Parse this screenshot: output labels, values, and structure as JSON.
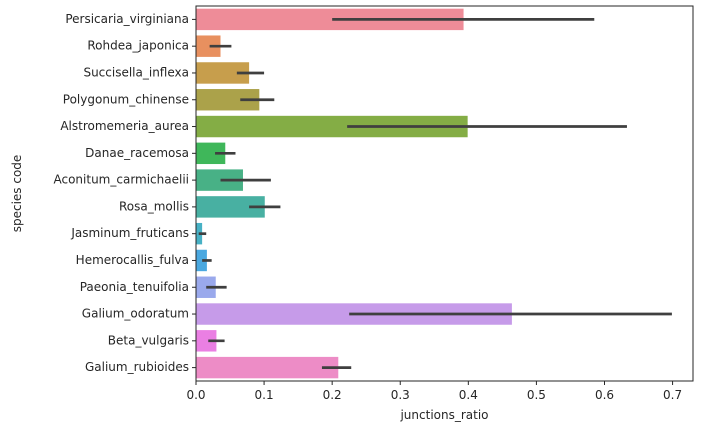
{
  "chart_data": {
    "type": "bar",
    "orientation": "horizontal",
    "title": "",
    "xlabel": "junctions_ratio",
    "ylabel": "species code",
    "xlim": [
      0,
      0.73
    ],
    "xticks": [
      0.0,
      0.1,
      0.2,
      0.3,
      0.4,
      0.5,
      0.6,
      0.7
    ],
    "xtick_labels": [
      "0.0",
      "0.1",
      "0.2",
      "0.3",
      "0.4",
      "0.5",
      "0.6",
      "0.7"
    ],
    "grid": false,
    "legend": "none",
    "error_bars": true,
    "bars": [
      {
        "category": "Persicaria_virginiana",
        "value": 0.393,
        "ci": [
          0.2,
          0.585
        ],
        "color": "#ee8c98"
      },
      {
        "category": "Rohdea_japonica",
        "value": 0.036,
        "ci": [
          0.02,
          0.052
        ],
        "color": "#e8905f"
      },
      {
        "category": "Succisella_inflexa",
        "value": 0.078,
        "ci": [
          0.06,
          0.1
        ],
        "color": "#c79e4c"
      },
      {
        "category": "Polygonum_chinense",
        "value": 0.093,
        "ci": [
          0.065,
          0.115
        ],
        "color": "#aba24a"
      },
      {
        "category": "Alstromemeria_aurea",
        "value": 0.399,
        "ci": [
          0.222,
          0.633
        ],
        "color": "#84ad45"
      },
      {
        "category": "Danae_racemosa",
        "value": 0.043,
        "ci": [
          0.028,
          0.058
        ],
        "color": "#3fb75a"
      },
      {
        "category": "Aconitum_carmichaelii",
        "value": 0.069,
        "ci": [
          0.036,
          0.11
        ],
        "color": "#48b186"
      },
      {
        "category": "Rosa_mollis",
        "value": 0.101,
        "ci": [
          0.078,
          0.124
        ],
        "color": "#48b0a2"
      },
      {
        "category": "Jasminum_fruticans",
        "value": 0.009,
        "ci": [
          0.004,
          0.015
        ],
        "color": "#47b1c5"
      },
      {
        "category": "Hemerocallis_fulva",
        "value": 0.016,
        "ci": [
          0.009,
          0.023
        ],
        "color": "#4aa8e0"
      },
      {
        "category": "Paeonia_tenuifolia",
        "value": 0.029,
        "ci": [
          0.015,
          0.045
        ],
        "color": "#9aa9ec"
      },
      {
        "category": "Galium_odoratum",
        "value": 0.464,
        "ci": [
          0.225,
          0.699
        ],
        "color": "#c69be9"
      },
      {
        "category": "Beta_vulgaris",
        "value": 0.03,
        "ci": [
          0.018,
          0.042
        ],
        "color": "#ea7fe3"
      },
      {
        "category": "Galium_rubioides",
        "value": 0.209,
        "ci": [
          0.185,
          0.228
        ],
        "color": "#ed8cc6"
      }
    ]
  }
}
